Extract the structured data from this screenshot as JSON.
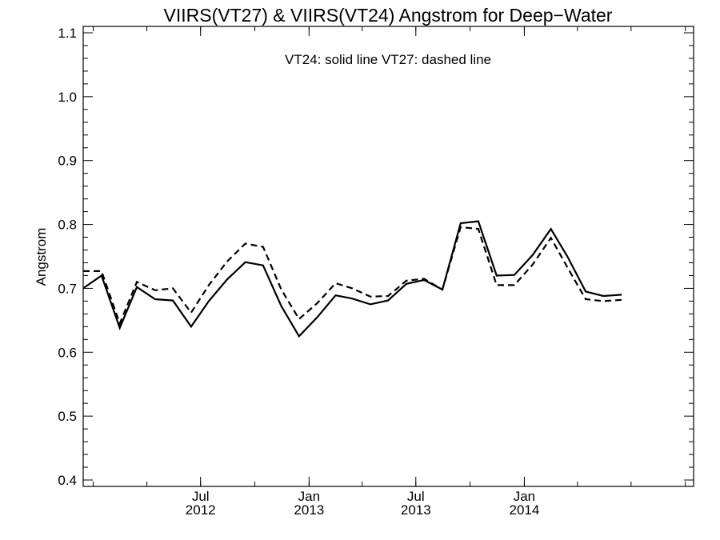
{
  "chart_data": {
    "type": "line",
    "title": "VIIRS(VT27) & VIIRS(VT24)  Angstrom for Deep−Water",
    "annotation": "VT24: solid line   VT27: dashed line",
    "ylabel": "Angstrom",
    "xlabel": "",
    "xlim": [
      "2011-12-15",
      "2014-10-15"
    ],
    "ylim": [
      0.39,
      1.11
    ],
    "y_ticks": [
      "0.4",
      "0.5",
      "0.6",
      "0.7",
      "0.8",
      "0.9",
      "1.0",
      "1.1"
    ],
    "x_ticks": [
      {
        "date": "2012-07-01",
        "line1": "Jul",
        "line2": "2012"
      },
      {
        "date": "2013-01-01",
        "line1": "Jan",
        "line2": "2013"
      },
      {
        "date": "2013-07-01",
        "line1": "Jul",
        "line2": "2013"
      },
      {
        "date": "2014-01-01",
        "line1": "Jan",
        "line2": "2014"
      }
    ],
    "x": [
      "2011-12-15",
      "2012-01-15",
      "2012-02-15",
      "2012-03-15",
      "2012-04-15",
      "2012-05-15",
      "2012-06-15",
      "2012-07-15",
      "2012-08-15",
      "2012-09-15",
      "2012-10-15",
      "2012-11-15",
      "2012-12-15",
      "2013-01-15",
      "2013-02-15",
      "2013-03-15",
      "2013-04-15",
      "2013-05-15",
      "2013-06-15",
      "2013-07-15",
      "2013-08-15",
      "2013-09-15",
      "2013-10-15",
      "2013-11-15",
      "2013-12-15",
      "2014-01-15",
      "2014-02-15",
      "2014-03-15",
      "2014-04-15",
      "2014-05-15",
      "2014-06-15"
    ],
    "series": [
      {
        "name": "VT24",
        "style": "solid",
        "color": "#000000",
        "values": [
          0.7,
          0.72,
          0.638,
          0.702,
          0.683,
          0.681,
          0.64,
          0.68,
          0.714,
          0.741,
          0.736,
          0.672,
          0.625,
          0.655,
          0.689,
          0.684,
          0.675,
          0.681,
          0.707,
          0.713,
          0.698,
          0.802,
          0.805,
          0.72,
          0.721,
          0.752,
          0.793,
          0.75,
          0.695,
          0.688,
          0.69
        ]
      },
      {
        "name": "VT27",
        "style": "dashed",
        "color": "#000000",
        "values": [
          0.727,
          0.727,
          0.645,
          0.71,
          0.697,
          0.7,
          0.662,
          0.705,
          0.742,
          0.77,
          0.765,
          0.698,
          0.652,
          0.677,
          0.708,
          0.7,
          0.687,
          0.688,
          0.712,
          0.715,
          0.698,
          0.796,
          0.793,
          0.705,
          0.705,
          0.737,
          0.779,
          0.733,
          0.683,
          0.68,
          0.682
        ]
      }
    ]
  }
}
